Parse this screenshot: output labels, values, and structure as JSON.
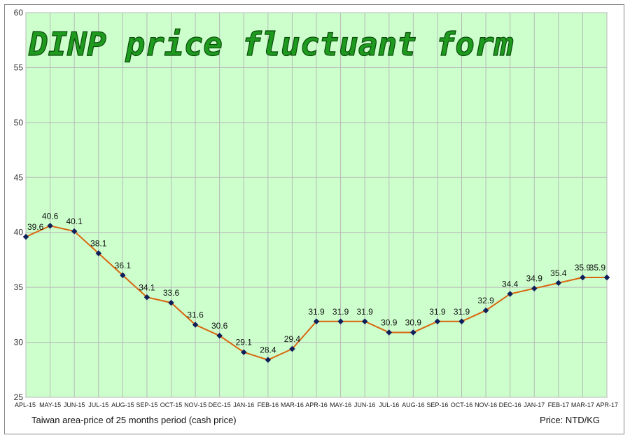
{
  "chart_data": {
    "type": "line",
    "title": "DINP price fluctuant form",
    "xlabel": "Taiwan area-price of 25 months period (cash price)",
    "unit_label": "Price: NTD/KG",
    "ylim": [
      25,
      60
    ],
    "yticks": [
      25,
      30,
      35,
      40,
      45,
      50,
      55,
      60
    ],
    "grid": true,
    "categories": [
      "APL-15",
      "MAY-15",
      "JUN-15",
      "JUL-15",
      "AUG-15",
      "SEP-15",
      "OCT-15",
      "NOV-15",
      "DEC-15",
      "JAN-16",
      "FEB-16",
      "MAR-16",
      "APR-16",
      "MAY-16",
      "JUN-16",
      "JUL-16",
      "AUG-16",
      "SEP-16",
      "OCT-16",
      "NOV-16",
      "DEC-16",
      "JAN-17",
      "FEB-17",
      "MAR-17",
      "APR-17"
    ],
    "values": [
      39.6,
      40.6,
      40.1,
      38.1,
      36.1,
      34.1,
      33.6,
      31.6,
      30.6,
      29.1,
      28.4,
      29.4,
      31.9,
      31.9,
      31.9,
      30.9,
      30.9,
      31.9,
      31.9,
      32.9,
      34.4,
      34.9,
      35.4,
      35.9,
      35.9
    ],
    "colors": {
      "plot_bg": "#ccffcc",
      "line": "#d9660f",
      "marker": "#0f1f5a",
      "grid": "#b8b8b8"
    }
  }
}
